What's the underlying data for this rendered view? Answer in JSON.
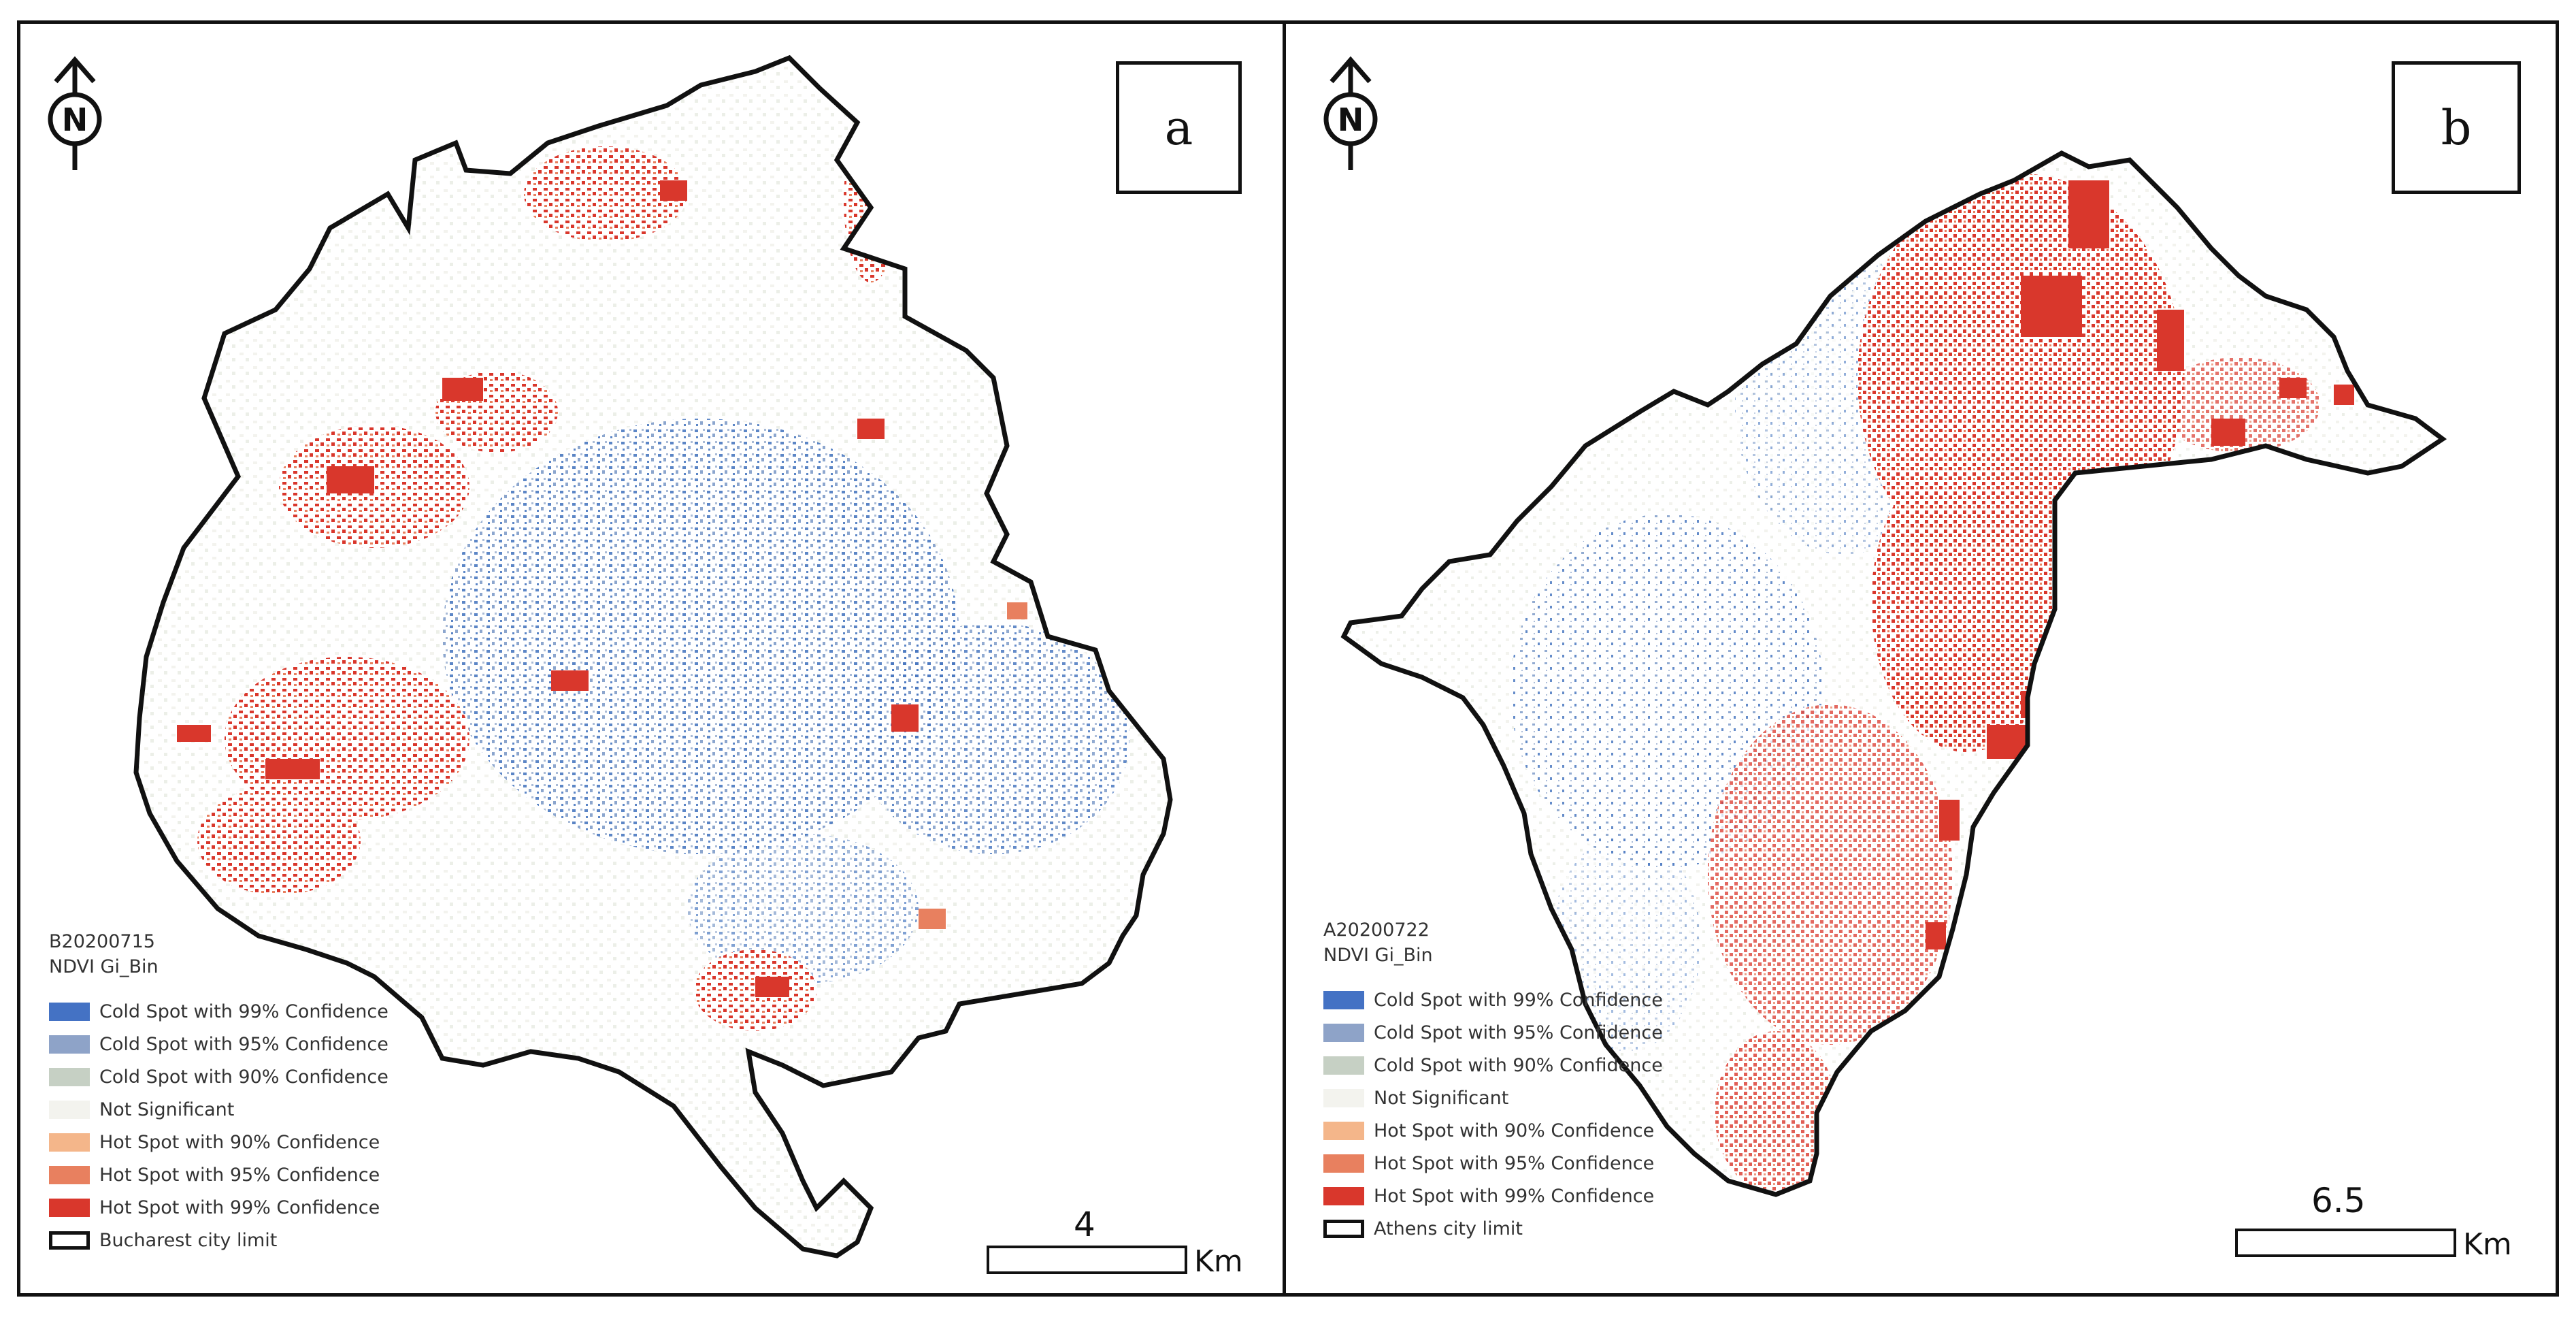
{
  "panels": [
    {
      "tag": "a",
      "layer_name": "B20200715",
      "field_name": "NDVI Gi_Bin",
      "legend": [
        {
          "label": "Cold Spot with 99% Confidence",
          "color": "#4472c4"
        },
        {
          "label": "Cold Spot with 95% Confidence",
          "color": "#8ea3c8"
        },
        {
          "label": "Cold Spot with 90% Confidence",
          "color": "#c6d0c4"
        },
        {
          "label": "Not Significant",
          "color": "#f3f3ee"
        },
        {
          "label": "Hot Spot with 90% Confidence",
          "color": "#f4b68a"
        },
        {
          "label": "Hot Spot with 95% Confidence",
          "color": "#e8805f"
        },
        {
          "label": "Hot Spot with 99% Confidence",
          "color": "#d9372c"
        }
      ],
      "limit_label": "Bucharest city limit",
      "scale_value": "4",
      "scale_unit": "Km"
    },
    {
      "tag": "b",
      "layer_name": "A20200722",
      "field_name": "NDVI Gi_Bin",
      "legend": [
        {
          "label": "Cold Spot with 99% Confidence",
          "color": "#4472c4"
        },
        {
          "label": "Cold Spot with 95% Confidence",
          "color": "#8ea3c8"
        },
        {
          "label": "Cold Spot with 90% Confidence",
          "color": "#c6d0c4"
        },
        {
          "label": "Not Significant",
          "color": "#f3f3ee"
        },
        {
          "label": "Hot Spot with 90% Confidence",
          "color": "#f4b68a"
        },
        {
          "label": "Hot Spot with 95% Confidence",
          "color": "#e8805f"
        },
        {
          "label": "Hot Spot with 99% Confidence",
          "color": "#d9372c"
        }
      ],
      "limit_label": "Athens city limit",
      "scale_value": "6.5",
      "scale_unit": "Km"
    }
  ],
  "north_label": "N",
  "icons": [
    "north-arrow-icon"
  ]
}
